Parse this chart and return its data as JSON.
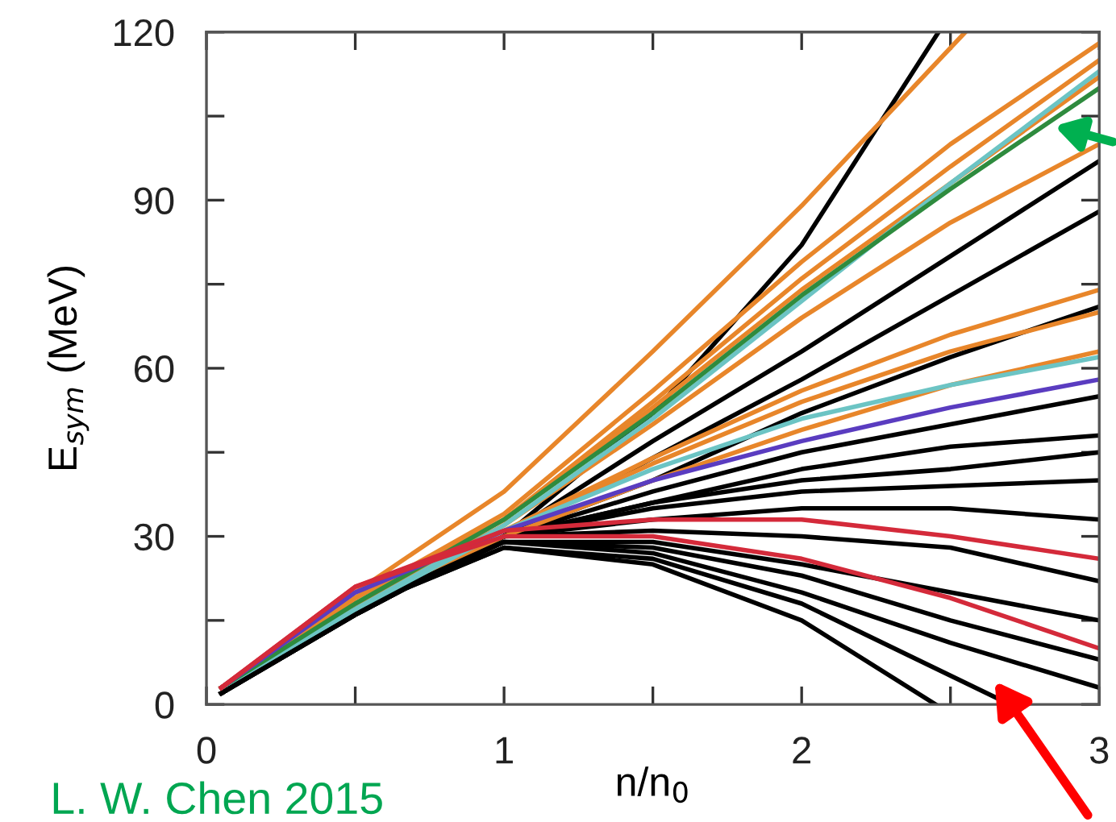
{
  "chart_data": {
    "type": "line",
    "xlabel": "n/n$_{0}$",
    "ylabel": "E$_{sym}$ (MeV)",
    "x": [
      0.05,
      0.5,
      1,
      1.5,
      2,
      2.5,
      3
    ],
    "xlim": [
      0,
      3
    ],
    "ylim": [
      0,
      120
    ],
    "xticks": [
      0,
      {
        "value": 0.5,
        "label": null
      },
      1,
      {
        "value": 1.5,
        "label": null
      },
      2,
      {
        "value": 2.5,
        "label": null
      },
      3
    ],
    "yticks": [
      0,
      {
        "value": 15,
        "label": null
      },
      30,
      {
        "value": 45,
        "label": null
      },
      60,
      {
        "value": 75,
        "label": null
      },
      90,
      {
        "value": 105,
        "label": null
      },
      120
    ],
    "grid": false,
    "marker": "none",
    "line_style": "solid",
    "annotations": [
      "L. W. Chen 2015"
    ],
    "series": [
      {
        "color": "#000000",
        "x": [
          0.05,
          0.5,
          1,
          1.5,
          2,
          2.46
        ],
        "values": [
          2,
          16,
          30,
          52,
          82,
          120
        ]
      },
      {
        "color": "#000000",
        "values": [
          2,
          16,
          30,
          47,
          63,
          80,
          97
        ]
      },
      {
        "color": "#000000",
        "values": [
          2,
          16,
          30,
          44,
          58,
          73,
          88
        ]
      },
      {
        "color": "#000000",
        "values": [
          2,
          16,
          30,
          40,
          52,
          62,
          71
        ]
      },
      {
        "color": "#000000",
        "values": [
          2,
          17,
          30,
          38,
          45,
          50,
          55
        ]
      },
      {
        "color": "#000000",
        "values": [
          2,
          17,
          30,
          36,
          42,
          46,
          48
        ]
      },
      {
        "color": "#000000",
        "values": [
          2,
          17,
          30,
          36,
          40,
          42,
          45
        ]
      },
      {
        "color": "#000000",
        "values": [
          2,
          17,
          30,
          35,
          38,
          39,
          40
        ]
      },
      {
        "color": "#000000",
        "values": [
          2,
          17,
          30,
          33,
          35,
          35,
          33
        ]
      },
      {
        "color": "#000000",
        "values": [
          2,
          17,
          30,
          31,
          30,
          28,
          22
        ]
      },
      {
        "color": "#000000",
        "values": [
          2,
          17,
          29,
          29,
          25,
          20,
          15
        ]
      },
      {
        "color": "#000000",
        "values": [
          2,
          17,
          29,
          28,
          23,
          15,
          8
        ]
      },
      {
        "color": "#000000",
        "values": [
          2,
          17,
          29,
          27,
          20,
          11,
          3
        ]
      },
      {
        "color": "#000000",
        "x": [
          0.05,
          0.5,
          1,
          1.5,
          2,
          2.7
        ],
        "values": [
          2,
          17,
          28,
          26,
          18,
          0
        ]
      },
      {
        "color": "#000000",
        "x": [
          0.05,
          0.5,
          1,
          1.5,
          2,
          2.45
        ],
        "values": [
          2,
          17,
          28,
          25,
          15,
          0
        ]
      },
      {
        "color": "#e8862a",
        "x": [
          0.05,
          0.5,
          1,
          1.5,
          2,
          2.55
        ],
        "values": [
          3,
          20,
          38,
          63,
          89,
          120
        ]
      },
      {
        "color": "#e8862a",
        "values": [
          3,
          19,
          34,
          56,
          79,
          100,
          118
        ]
      },
      {
        "color": "#e8862a",
        "values": [
          3,
          19,
          33,
          54,
          76,
          96,
          115
        ]
      },
      {
        "color": "#e8862a",
        "values": [
          3,
          19,
          33,
          53,
          74,
          93,
          112
        ]
      },
      {
        "color": "#e8862a",
        "values": [
          3,
          18,
          32,
          50,
          69,
          86,
          100
        ]
      },
      {
        "color": "#e8862a",
        "values": [
          3,
          18,
          31,
          44,
          56,
          66,
          74
        ]
      },
      {
        "color": "#e8862a",
        "values": [
          3,
          18,
          31,
          43,
          54,
          63,
          70
        ]
      },
      {
        "color": "#e8862a",
        "values": [
          3,
          18,
          30,
          40,
          49,
          57,
          63
        ]
      },
      {
        "color": "#6cc4c4",
        "values": [
          3,
          17,
          32,
          51,
          72,
          93,
          113
        ]
      },
      {
        "color": "#6cc4c4",
        "values": [
          3,
          17,
          31,
          42,
          51,
          57,
          62
        ]
      },
      {
        "color": "#2e8b3e",
        "values": [
          3,
          18,
          33,
          52,
          73,
          92,
          110
        ]
      },
      {
        "color": "#5a3cc0",
        "values": [
          3,
          20,
          31,
          40,
          47,
          53,
          58
        ]
      },
      {
        "color": "#d42a3a",
        "values": [
          3,
          21,
          31,
          33,
          33,
          30,
          26
        ]
      },
      {
        "color": "#d42a3a",
        "values": [
          3,
          21,
          30,
          30,
          26,
          19,
          10
        ]
      }
    ]
  }
}
